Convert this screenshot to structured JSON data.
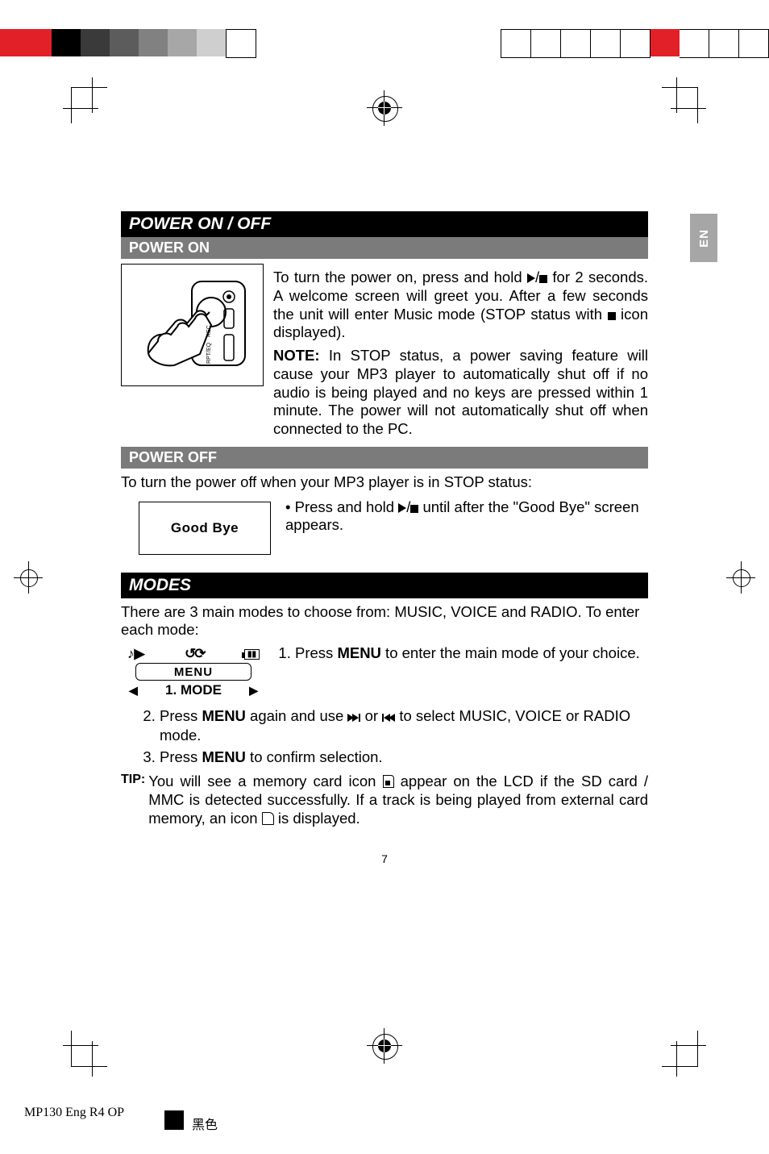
{
  "topstrip_left_colors": [
    "#e22028",
    "#000000",
    "#3a3a3a",
    "#5c5c5c",
    "#818181",
    "#a7a7a7",
    "#cfcfcf",
    "#ffffff"
  ],
  "topstrip_right_colors": [
    "#ffffff",
    "#ffffff",
    "#ffffff",
    "#ffffff",
    "#ffffff",
    "#e22028",
    "#ffffff",
    "#ffffff",
    "#ffffff"
  ],
  "topstrip_right_borders": [
    true,
    true,
    true,
    true,
    true,
    false,
    true,
    true,
    true
  ],
  "en_badge": "EN",
  "h1": "POWER ON / OFF",
  "sub_poweron": "POWER ON",
  "poweron_p1_a": "To turn the power on, press and hold ",
  "poweron_p1_b": " for 2 seconds. A welcome screen will greet you. After a few seconds the unit will enter Music mode (STOP status with ",
  "poweron_p1_c": " icon displayed).",
  "poweron_p2_lead": "NOTE:",
  "poweron_p2": " In STOP status, a power saving feature will cause your MP3 player to automatically shut off if no audio is being played and no keys are pressed within 1 minute. The power will not automatically shut off when connected to the PC.",
  "sub_poweroff": "POWER OFF",
  "poweroff_line": "To turn the power off when your MP3 player is in STOP status:",
  "poweroff_bullet_a": "Press and hold ",
  "poweroff_bullet_b": " until after the \"Good Bye\" screen appears.",
  "goodbye": "Good Bye",
  "h2": "MODES",
  "modes_intro": "There are 3 main modes to choose from: MUSIC, VOICE and RADIO. To enter each mode:",
  "menu_mid": "MENU",
  "menu_mode": "1. MODE",
  "list1_a": "Press ",
  "menu_word": "MENU",
  "list1_b": " to enter the main mode of your choice.",
  "list2_a": "Press ",
  "list2_b": " again and use ",
  "list2_c": " or ",
  "list2_d": " to select MUSIC, VOICE or RADIO mode.",
  "list3_a": "Press ",
  "list3_b": " to confirm selection.",
  "tip_label": "TIP:",
  "tip_a": " You will see a memory card icon ",
  "tip_b": " appear on the LCD if the SD card / MMC is detected successfully. If a track is being played from external card memory, an icon ",
  "tip_c": " is displayed.",
  "page_number": "7",
  "footer_left": "MP130 Eng R4 OP",
  "footer_mid": "黑色"
}
